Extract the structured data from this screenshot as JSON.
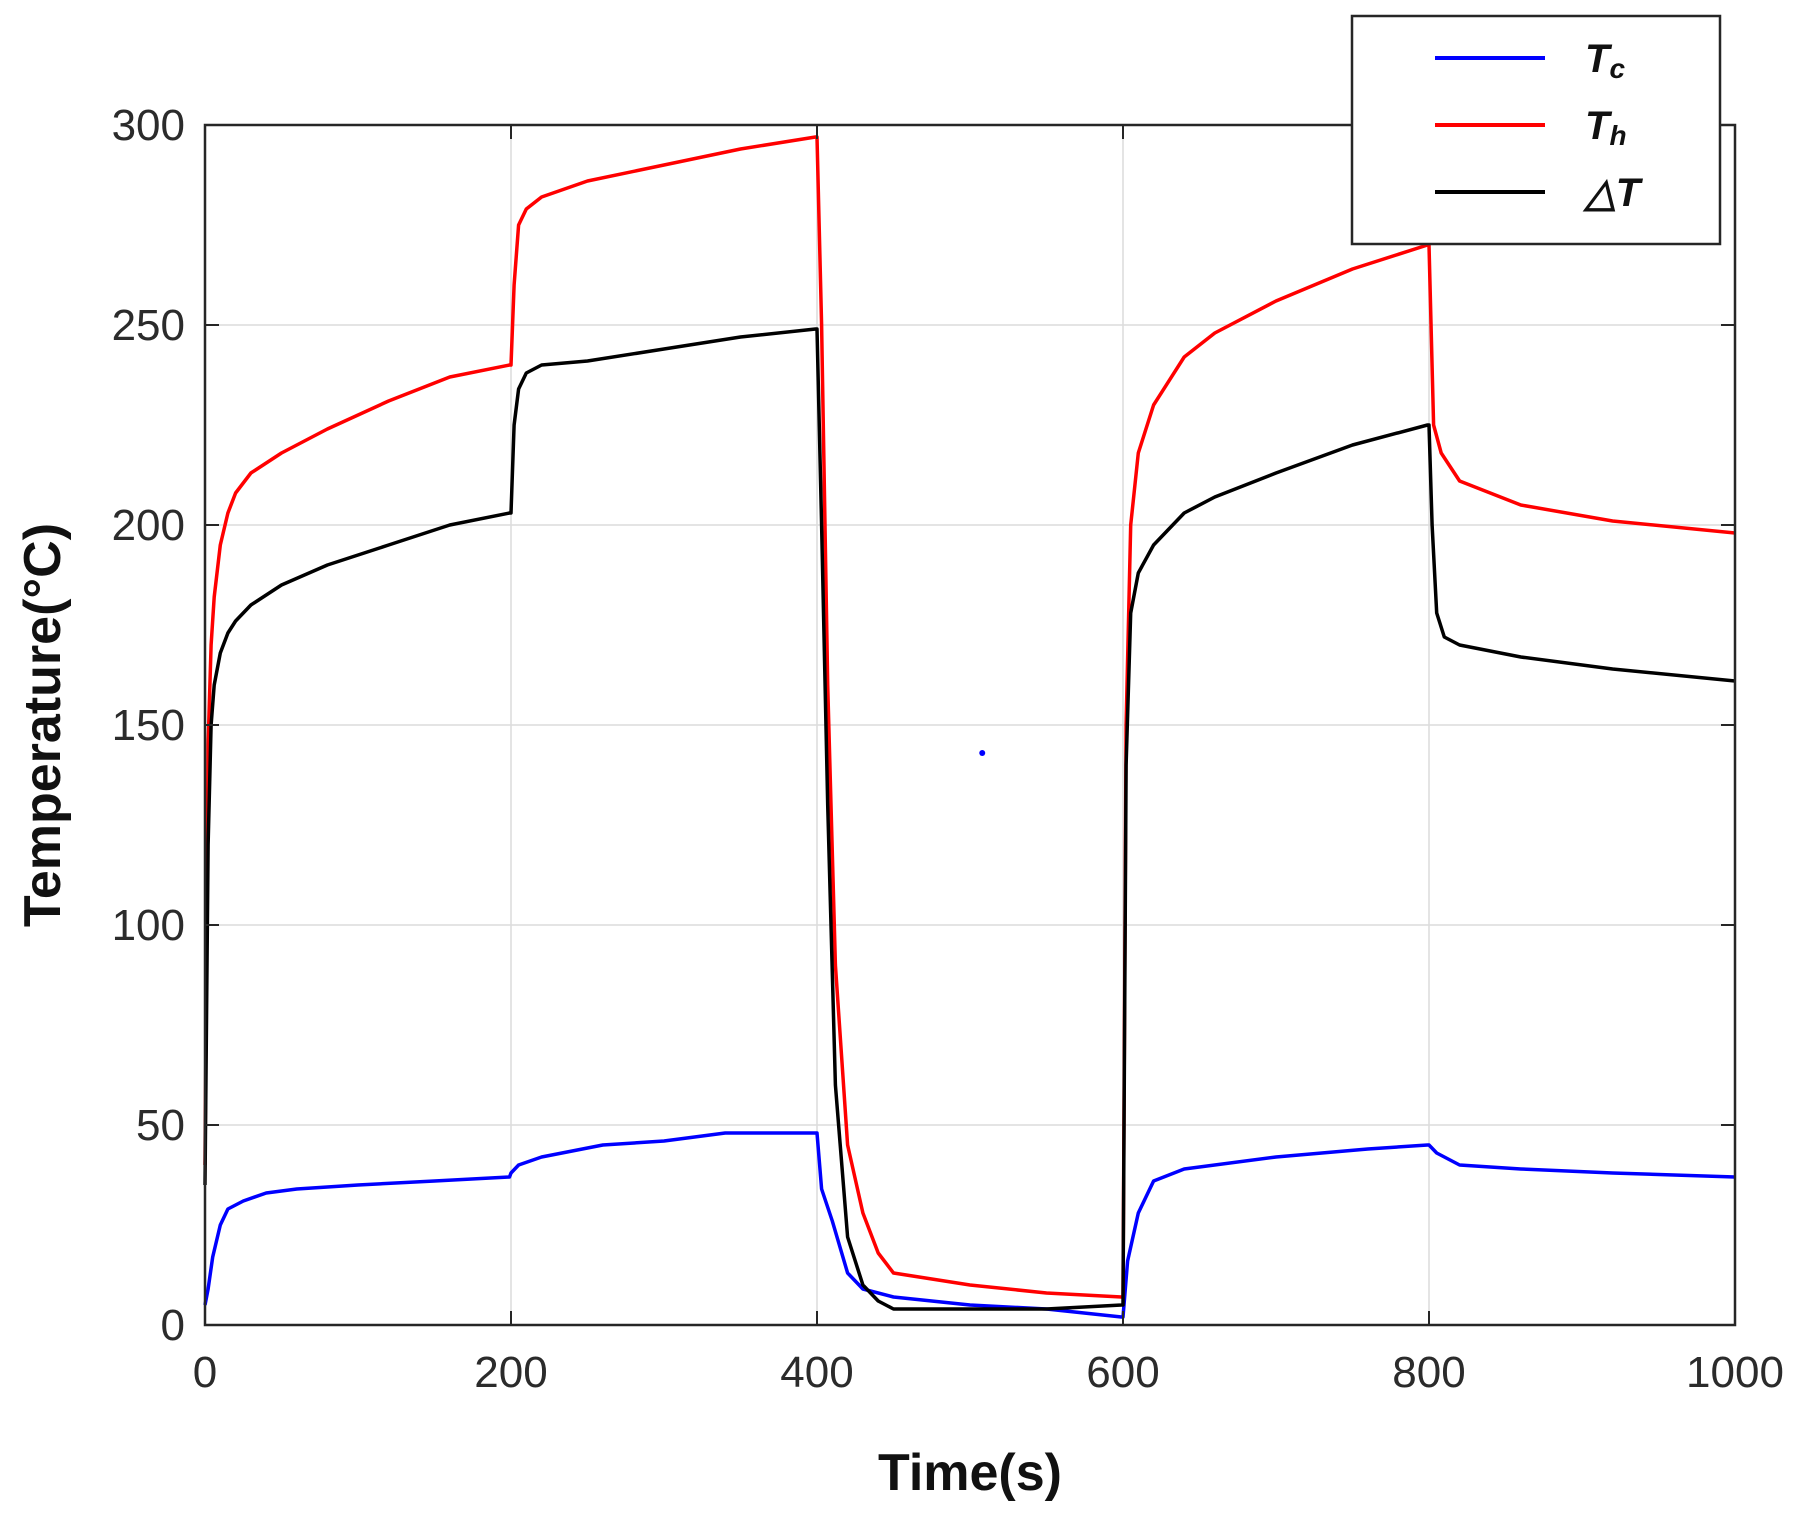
{
  "chart_data": {
    "type": "line",
    "title": "",
    "xlabel": "Time(s)",
    "ylabel": "Temperature(°C)",
    "xlim": [
      0,
      1000
    ],
    "ylim": [
      0,
      300
    ],
    "x_ticks": [
      0,
      200,
      400,
      600,
      800,
      1000
    ],
    "y_ticks": [
      0,
      50,
      100,
      150,
      200,
      250,
      300
    ],
    "grid": true,
    "legend_position": "top-right",
    "series": [
      {
        "name": "Tc",
        "label_main": "T",
        "label_sub": "c",
        "color": "#0000ff",
        "x": [
          0,
          2,
          5,
          10,
          15,
          25,
          40,
          60,
          100,
          150,
          199,
          200,
          205,
          220,
          260,
          300,
          340,
          399,
          400,
          403,
          410,
          420,
          430,
          450,
          500,
          550,
          599,
          600,
          603,
          610,
          620,
          640,
          700,
          760,
          799,
          800,
          805,
          820,
          860,
          920,
          1000
        ],
        "y": [
          5,
          9,
          17,
          25,
          29,
          31,
          33,
          34,
          35,
          36,
          37,
          38,
          40,
          42,
          45,
          46,
          48,
          48,
          48,
          34,
          26,
          13,
          9,
          7,
          5,
          4,
          2,
          2,
          16,
          28,
          36,
          39,
          42,
          44,
          45,
          45,
          43,
          40,
          39,
          38,
          37
        ]
      },
      {
        "name": "Th",
        "label_main": "T",
        "label_sub": "h",
        "color": "#ff0000",
        "x": [
          0,
          2,
          4,
          6,
          10,
          15,
          20,
          30,
          50,
          80,
          120,
          160,
          199,
          200,
          202,
          205,
          210,
          220,
          250,
          300,
          350,
          399,
          400,
          403,
          407,
          412,
          420,
          430,
          440,
          450,
          500,
          550,
          599,
          600,
          602,
          605,
          610,
          620,
          640,
          660,
          700,
          750,
          799,
          800,
          803,
          808,
          820,
          860,
          920,
          1000
        ],
        "y": [
          40,
          145,
          170,
          182,
          195,
          203,
          208,
          213,
          218,
          224,
          231,
          237,
          240,
          240,
          260,
          275,
          279,
          282,
          286,
          290,
          294,
          297,
          297,
          250,
          160,
          90,
          45,
          28,
          18,
          13,
          10,
          8,
          7,
          7,
          150,
          200,
          218,
          230,
          242,
          248,
          256,
          264,
          270,
          270,
          225,
          218,
          211,
          205,
          201,
          198
        ]
      },
      {
        "name": "ΔT",
        "label_main": "△T",
        "label_sub": "",
        "color": "#000000",
        "x": [
          0,
          2,
          4,
          6,
          10,
          15,
          20,
          30,
          50,
          80,
          120,
          160,
          199,
          200,
          202,
          205,
          210,
          220,
          250,
          300,
          350,
          399,
          400,
          403,
          407,
          412,
          420,
          430,
          440,
          450,
          500,
          550,
          599,
          600,
          602,
          605,
          610,
          620,
          640,
          660,
          700,
          750,
          799,
          800,
          802,
          805,
          810,
          820,
          860,
          920,
          1000
        ],
        "y": [
          35,
          120,
          150,
          160,
          168,
          173,
          176,
          180,
          185,
          190,
          195,
          200,
          203,
          203,
          225,
          234,
          238,
          240,
          241,
          244,
          247,
          249,
          249,
          200,
          130,
          60,
          22,
          10,
          6,
          4,
          4,
          4,
          5,
          5,
          140,
          178,
          188,
          195,
          203,
          207,
          213,
          220,
          225,
          225,
          200,
          178,
          172,
          170,
          167,
          164,
          161
        ]
      }
    ],
    "annotations": [
      {
        "type": "stray-point",
        "x": 508,
        "y": 143,
        "color": "#0000ff"
      }
    ]
  }
}
